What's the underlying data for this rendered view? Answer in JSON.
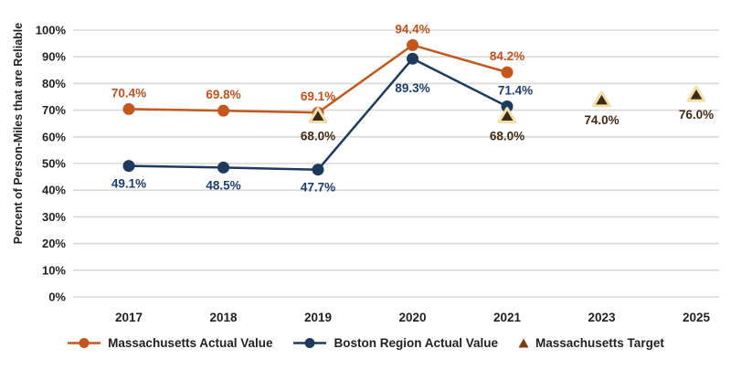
{
  "chart_data": {
    "type": "line",
    "title": "",
    "ylabel": "Percent of Person-Miles that are Reliable",
    "xlabel": "",
    "ylim": [
      0,
      100
    ],
    "ytick_step": 10,
    "ytick_suffix": "%",
    "grid": true,
    "legend_position": "bottom",
    "categories": [
      "2017",
      "2018",
      "2019",
      "2020",
      "2021",
      "2023",
      "2025"
    ],
    "series": [
      {
        "name": "Massachusetts Actual Value",
        "marker": "circle",
        "line": true,
        "color": "#C4571E",
        "label_color": "#C2511C",
        "values": [
          70.4,
          69.8,
          69.1,
          94.4,
          84.2,
          null,
          null
        ],
        "label_positions": [
          "above",
          "above",
          "above",
          "above",
          "above",
          null,
          null
        ]
      },
      {
        "name": "Boston Region Actual Value",
        "marker": "circle",
        "line": true,
        "color": "#1E3A5F",
        "label_color": "#1B3E6F",
        "values": [
          49.1,
          48.5,
          47.7,
          89.3,
          71.4,
          null,
          null
        ],
        "label_positions": [
          "below",
          "below",
          "below",
          "below-far",
          "above-right",
          null,
          null
        ]
      },
      {
        "name": "Massachusetts Target",
        "marker": "triangle",
        "line": false,
        "color": "#3B2A16",
        "marker_stroke": "#F2DFA9",
        "label_color": "#452A13",
        "values": [
          null,
          null,
          68.0,
          null,
          68.0,
          74.0,
          76.0
        ],
        "label_positions": [
          null,
          null,
          "below",
          null,
          "below",
          "below",
          "below"
        ]
      }
    ],
    "legend": [
      {
        "label": "Massachusetts Actual Value",
        "swatch": "line-circle",
        "color": "#C4571E"
      },
      {
        "label": "Boston Region Actual Value",
        "swatch": "line-circle",
        "color": "#1E3A5F"
      },
      {
        "label": "Massachusetts Target",
        "swatch": "triangle",
        "color": "#7C3D12"
      }
    ],
    "colors": {
      "gridline": "#D9D9D9",
      "text": "#231f20",
      "triangle_fill": "#3B2A16",
      "triangle_stroke": "#F2DFA9"
    }
  }
}
